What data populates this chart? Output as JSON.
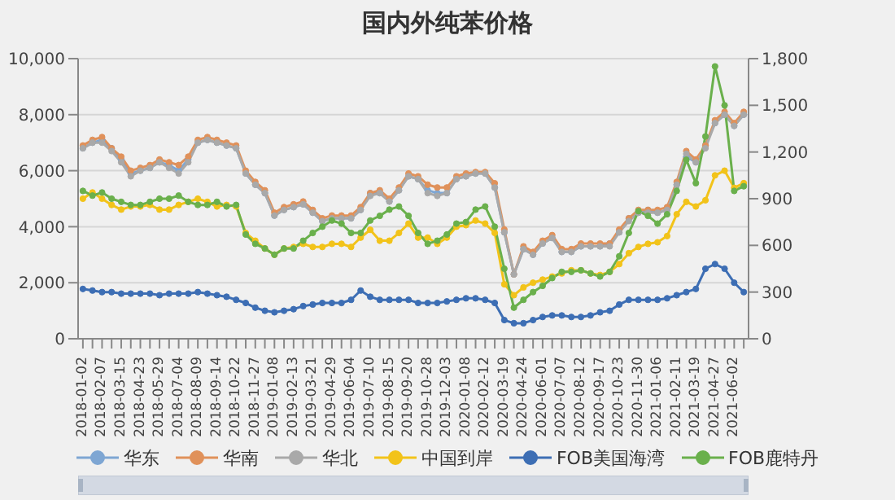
{
  "chart_data": {
    "type": "line",
    "title": "国内外纯苯价格",
    "categories": [
      "2018-01-02",
      null,
      "2018-02-07",
      null,
      "2018-03-15",
      null,
      "2018-04-23",
      null,
      "2018-05-29",
      null,
      "2018-07-04",
      null,
      "2018-08-09",
      null,
      "2018-09-14",
      null,
      "2018-10-22",
      null,
      "2018-11-27",
      null,
      "2019-01-08",
      null,
      "2019-02-13",
      null,
      "2019-03-21",
      null,
      "2019-04-29",
      null,
      "2019-06-04",
      null,
      "2019-07-10",
      null,
      "2019-08-15",
      null,
      "2019-09-20",
      null,
      "2019-10-28",
      null,
      "2019-12-03",
      null,
      "2020-01-08",
      null,
      "2020-02-12",
      null,
      "2020-03-19",
      null,
      "2020-04-24",
      null,
      "2020-06-01",
      null,
      "2020-07-07",
      null,
      "2020-08-12",
      null,
      "2020-09-17",
      null,
      "2020-10-23",
      null,
      "2020-11-30",
      null,
      "2021-01-06",
      null,
      "2021-02-11",
      null,
      "2021-03-19",
      null,
      "2021-04-27",
      null,
      "2021-06-02",
      null
    ],
    "series": [
      {
        "name": "华东",
        "color": "#7ea6d3",
        "values": [
          6800,
          7000,
          7100,
          6800,
          6400,
          5900,
          6000,
          6100,
          6300,
          6200,
          6000,
          6400,
          7000,
          7100,
          7000,
          6900,
          6800,
          5900,
          5500,
          5200,
          4400,
          4600,
          4700,
          4800,
          4500,
          4200,
          4300,
          4300,
          4300,
          4600,
          5200,
          5200,
          4900,
          5300,
          5800,
          5700,
          5300,
          5200,
          5200,
          5700,
          5800,
          5900,
          5900,
          5400,
          3800,
          2300,
          3200,
          3000,
          3400,
          3600,
          3100,
          3100,
          3300,
          3300,
          3300,
          3400,
          3800,
          4300,
          4500,
          4600,
          4500,
          4600,
          5500,
          6500,
          6300,
          6900,
          7700,
          8000,
          7600,
          8000
        ]
      },
      {
        "name": "华南",
        "color": "#e0915a",
        "values": [
          6900,
          7100,
          7200,
          6800,
          6500,
          6000,
          6100,
          6200,
          6400,
          6300,
          6200,
          6500,
          7100,
          7200,
          7100,
          7000,
          6900,
          6000,
          5600,
          5300,
          4500,
          4700,
          4800,
          4900,
          4600,
          4300,
          4400,
          4400,
          4400,
          4700,
          5200,
          5300,
          5000,
          5400,
          5900,
          5800,
          5500,
          5400,
          5400,
          5800,
          5900,
          5950,
          5950,
          5550,
          3900,
          2300,
          3300,
          3100,
          3500,
          3700,
          3200,
          3200,
          3400,
          3400,
          3400,
          3400,
          3900,
          4300,
          4600,
          4600,
          4600,
          4700,
          5600,
          6700,
          6400,
          6900,
          7800,
          8100,
          7700,
          8100
        ]
      },
      {
        "name": "华北",
        "color": "#a9a9a9",
        "values": [
          6800,
          7000,
          7000,
          6700,
          6300,
          5800,
          6000,
          6100,
          6300,
          6100,
          5900,
          6300,
          7000,
          7100,
          7000,
          6900,
          6800,
          5900,
          5500,
          5200,
          4400,
          4600,
          4700,
          4800,
          4500,
          4200,
          4300,
          4300,
          4300,
          4600,
          5100,
          5200,
          4900,
          5300,
          5800,
          5700,
          5200,
          5100,
          5200,
          5700,
          5800,
          5900,
          5900,
          5400,
          3800,
          2300,
          3200,
          3000,
          3400,
          3600,
          3100,
          3100,
          3300,
          3300,
          3300,
          3300,
          3800,
          4200,
          4500,
          4500,
          4500,
          4600,
          5500,
          6600,
          6300,
          6800,
          7700,
          8000,
          7600,
          8000
        ]
      },
      {
        "name": "中国到岸",
        "color": "#f2c31a",
        "axis": "y2",
        "values": [
          900,
          940,
          900,
          860,
          830,
          850,
          850,
          860,
          830,
          830,
          860,
          880,
          900,
          880,
          850,
          860,
          850,
          680,
          630,
          580,
          540,
          580,
          590,
          610,
          590,
          590,
          610,
          610,
          590,
          650,
          700,
          630,
          630,
          680,
          740,
          650,
          650,
          610,
          650,
          720,
          730,
          760,
          740,
          680,
          350,
          280,
          330,
          360,
          380,
          400,
          420,
          440,
          440,
          420,
          410,
          430,
          480,
          550,
          590,
          610,
          620,
          660,
          800,
          880,
          850,
          890,
          1050,
          1080,
          970,
          1000
        ]
      },
      {
        "name": "FOB美国海湾",
        "color": "#3d6eb4",
        "axis": "y2",
        "values": [
          320,
          310,
          300,
          300,
          290,
          290,
          290,
          290,
          280,
          290,
          290,
          290,
          300,
          290,
          280,
          270,
          250,
          230,
          200,
          180,
          170,
          180,
          190,
          210,
          220,
          230,
          230,
          230,
          250,
          310,
          270,
          250,
          250,
          250,
          250,
          230,
          230,
          230,
          240,
          250,
          260,
          260,
          250,
          230,
          120,
          100,
          100,
          120,
          140,
          150,
          150,
          140,
          140,
          150,
          170,
          180,
          220,
          250,
          250,
          250,
          250,
          260,
          280,
          300,
          320,
          450,
          480,
          450,
          360,
          300
        ]
      },
      {
        "name": "FOB鹿特丹",
        "color": "#6ab04c",
        "axis": "y2",
        "values": [
          950,
          920,
          940,
          900,
          880,
          860,
          860,
          880,
          900,
          900,
          920,
          880,
          860,
          860,
          880,
          850,
          860,
          670,
          610,
          580,
          540,
          580,
          580,
          630,
          680,
          720,
          760,
          740,
          680,
          680,
          760,
          790,
          830,
          850,
          790,
          680,
          610,
          630,
          670,
          740,
          750,
          830,
          850,
          720,
          450,
          200,
          250,
          300,
          340,
          390,
          430,
          430,
          440,
          420,
          400,
          430,
          530,
          680,
          820,
          790,
          740,
          800,
          950,
          1150,
          1000,
          1300,
          1750,
          1500,
          950,
          980
        ]
      }
    ],
    "ylim": [
      0,
      10000
    ],
    "yticks": [
      0,
      {
        "value": 2000,
        "label": "2,000"
      },
      {
        "value": 4000,
        "label": "4,000"
      },
      {
        "value": 6000,
        "label": "6,000"
      },
      {
        "value": 8000,
        "label": "8,000"
      },
      {
        "value": 10000,
        "label": "10,000"
      }
    ],
    "y2lim": [
      0,
      1800
    ],
    "y2ticks": [
      0,
      300,
      600,
      900,
      {
        "value": 1200,
        "label": "1,200"
      },
      {
        "value": 1500,
        "label": "1,500"
      },
      {
        "value": 1800,
        "label": "1,800"
      }
    ],
    "grid": "y",
    "legend": "bottom",
    "marker": "circle",
    "line_style": "solid"
  }
}
